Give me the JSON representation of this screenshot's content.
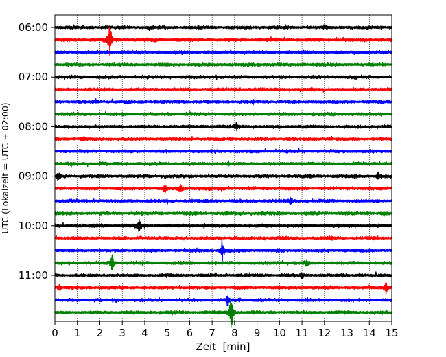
{
  "chart_data": {
    "type": "line",
    "title": "",
    "xlabel": "Zeit  [min]",
    "ylabel": "UTC (Lokalzeit = UTC + 02:00)",
    "xlim": [
      0,
      15
    ],
    "x_ticks": [
      "0",
      "1",
      "2",
      "3",
      "4",
      "5",
      "6",
      "7",
      "8",
      "9",
      "10",
      "11",
      "12",
      "13",
      "14",
      "15"
    ],
    "y_ticks": [
      "06:00",
      "07:00",
      "08:00",
      "09:00",
      "10:00",
      "11:00"
    ],
    "grid_x": true,
    "trace_interval_minutes": 15,
    "trace_start": "06:00",
    "trace_count": 24,
    "trace_colors": [
      "#000000",
      "#ff0000",
      "#0000ff",
      "#008000"
    ],
    "events": [
      {
        "trace": 1,
        "minute": 2.45,
        "amplitude": 3.5
      },
      {
        "trace": 9,
        "minute": 1.25,
        "amplitude": 0.4
      },
      {
        "trace": 8,
        "minute": 8.1,
        "amplitude": 0.8
      },
      {
        "trace": 12,
        "minute": 0.15,
        "amplitude": 0.8
      },
      {
        "trace": 12,
        "minute": 14.4,
        "amplitude": 0.7
      },
      {
        "trace": 13,
        "minute": 4.9,
        "amplitude": 0.7
      },
      {
        "trace": 13,
        "minute": 5.6,
        "amplitude": 0.6
      },
      {
        "trace": 14,
        "minute": 10.5,
        "amplitude": 0.6
      },
      {
        "trace": 16,
        "minute": 3.75,
        "amplitude": 1.3
      },
      {
        "trace": 18,
        "minute": 7.45,
        "amplitude": 2.2
      },
      {
        "trace": 19,
        "minute": 2.55,
        "amplitude": 1.6
      },
      {
        "trace": 19,
        "minute": 11.2,
        "amplitude": 0.6
      },
      {
        "trace": 20,
        "minute": 11.0,
        "amplitude": 0.6
      },
      {
        "trace": 21,
        "minute": 0.2,
        "amplitude": 0.7
      },
      {
        "trace": 21,
        "minute": 14.75,
        "amplitude": 1.2
      },
      {
        "trace": 22,
        "minute": 7.7,
        "amplitude": 1.2
      },
      {
        "trace": 23,
        "minute": 7.85,
        "amplitude": 4.0
      }
    ]
  }
}
